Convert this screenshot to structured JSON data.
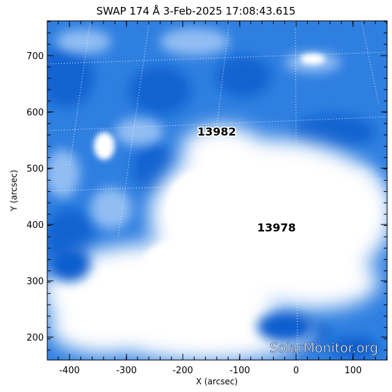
{
  "title": "SWAP 174 Å  3-Feb-2025 17:08:43.615",
  "x_axis": {
    "label": "X (arcsec)",
    "ticks": [
      "-400",
      "-300",
      "-200",
      "-100",
      "0",
      "100"
    ]
  },
  "y_axis": {
    "label": "Y (arcsec)",
    "ticks": [
      "700",
      "600",
      "500",
      "400",
      "300",
      "200"
    ]
  },
  "regions": [
    {
      "label": "13982"
    },
    {
      "label": "13978"
    }
  ],
  "watermark": "SolarMonitor.org",
  "colors": {
    "corona_dark": "#0a5fcf",
    "corona_mid": "#3c8ae8",
    "corona_light": "#9cc4f5",
    "bright": "#ffffff",
    "frame": "#000000"
  }
}
